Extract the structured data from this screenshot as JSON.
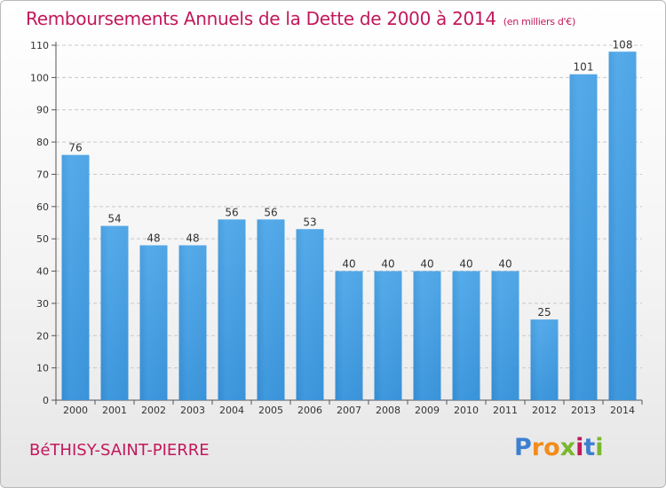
{
  "chart_data": {
    "type": "bar",
    "title": "Remboursements Annuels de la Dette de 2000 à 2014",
    "subtitle": "(en milliers d'€)",
    "categories": [
      "2000",
      "2001",
      "2002",
      "2003",
      "2004",
      "2005",
      "2006",
      "2007",
      "2008",
      "2009",
      "2010",
      "2011",
      "2012",
      "2013",
      "2014"
    ],
    "values": [
      76,
      54,
      48,
      48,
      56,
      56,
      53,
      40,
      40,
      40,
      40,
      40,
      25,
      101,
      108
    ],
    "ylim": [
      0,
      110
    ],
    "yticks": [
      0,
      10,
      20,
      30,
      40,
      50,
      60,
      70,
      80,
      90,
      100,
      110
    ],
    "xlabel": "",
    "ylabel": "",
    "grid": true,
    "bar_color": "#3a92d8"
  },
  "commune": "BéTHISY-SAINT-PIERRE",
  "logo": {
    "letters": [
      "P",
      "r",
      "o",
      "x",
      "i",
      "t",
      "i"
    ],
    "colors": [
      "#3d7fd0",
      "#f28c1a",
      "#f28c1a",
      "#7ab72e",
      "#c2185b",
      "#3d7fd0",
      "#7ab72e"
    ]
  }
}
